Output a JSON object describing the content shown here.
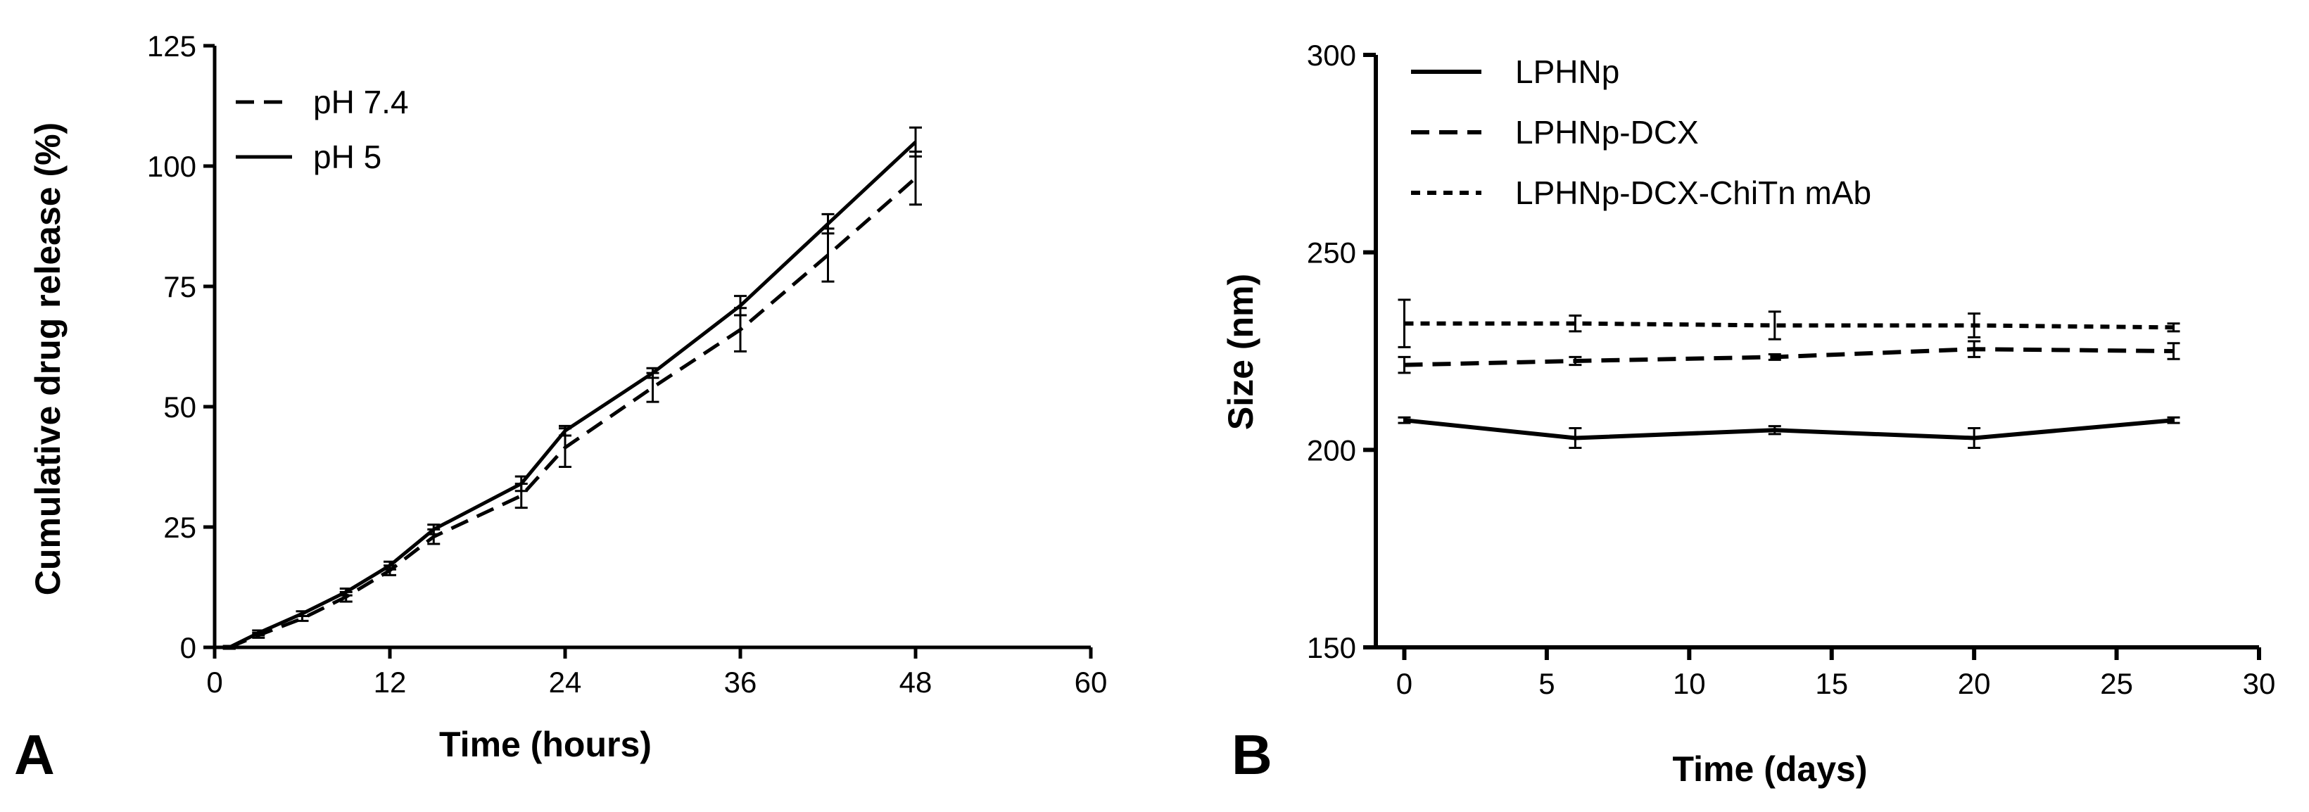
{
  "chart_data": [
    {
      "type": "line",
      "panel_label": "A",
      "title": "",
      "xlabel": "Time (hours)",
      "ylabel": "Cumulative drug release (%)",
      "xlim": [
        0,
        60
      ],
      "ylim": [
        0,
        125
      ],
      "x_ticks": [
        0,
        12,
        24,
        36,
        48,
        60
      ],
      "y_ticks": [
        0,
        25,
        50,
        75,
        100,
        125
      ],
      "grid": false,
      "legend_position": "top-left",
      "series": [
        {
          "name": "pH 7.4",
          "dash": "dashed",
          "x": [
            1,
            3,
            6,
            9,
            12,
            15,
            21,
            24,
            30,
            36,
            42,
            48
          ],
          "y": [
            0,
            2.5,
            6,
            10.5,
            16,
            23,
            31.5,
            41.5,
            54,
            66,
            81.5,
            97.5
          ],
          "err": [
            0.3,
            0.5,
            0.5,
            1,
            1,
            1.5,
            2.5,
            4,
            3,
            4.5,
            5.5,
            5.5
          ]
        },
        {
          "name": "pH 5",
          "dash": "solid",
          "x": [
            1,
            3,
            6,
            9,
            12,
            15,
            21,
            24,
            30,
            36,
            42,
            48
          ],
          "y": [
            0,
            3,
            7,
            11.5,
            17,
            24.5,
            34,
            45,
            57,
            71,
            88,
            105
          ],
          "err": [
            0.3,
            0.5,
            0.5,
            0.7,
            0.8,
            1,
            1.5,
            1,
            1,
            2,
            2,
            3
          ]
        }
      ]
    },
    {
      "type": "line",
      "panel_label": "B",
      "title": "",
      "xlabel": "Time (days)",
      "ylabel": "Size (nm)",
      "xlim": [
        -1,
        30
      ],
      "ylim": [
        150,
        300
      ],
      "x_ticks": [
        0,
        5,
        10,
        15,
        20,
        25,
        30
      ],
      "y_ticks": [
        150,
        200,
        250,
        300
      ],
      "grid": false,
      "legend_position": "top-left",
      "series": [
        {
          "name": "LPHNp",
          "dash": "solid",
          "x": [
            0,
            6,
            13,
            20,
            27
          ],
          "y": [
            207.5,
            203,
            205,
            203,
            207.5
          ],
          "err": [
            0.7,
            2.5,
            1,
            2.5,
            0.7
          ]
        },
        {
          "name": "LPHNp-DCX",
          "dash": "dashed",
          "x": [
            0,
            6,
            13,
            20,
            27
          ],
          "y": [
            221.5,
            222.5,
            223.5,
            225.5,
            225
          ],
          "err": [
            2,
            1,
            0.7,
            2,
            2
          ]
        },
        {
          "name": "LPHNp-DCX-ChiTn mAb",
          "dash": "dotted",
          "x": [
            0,
            6,
            13,
            20,
            27
          ],
          "y": [
            232,
            232,
            231.5,
            231.5,
            231
          ],
          "err": [
            6,
            2,
            3.5,
            3,
            1
          ]
        }
      ]
    }
  ]
}
